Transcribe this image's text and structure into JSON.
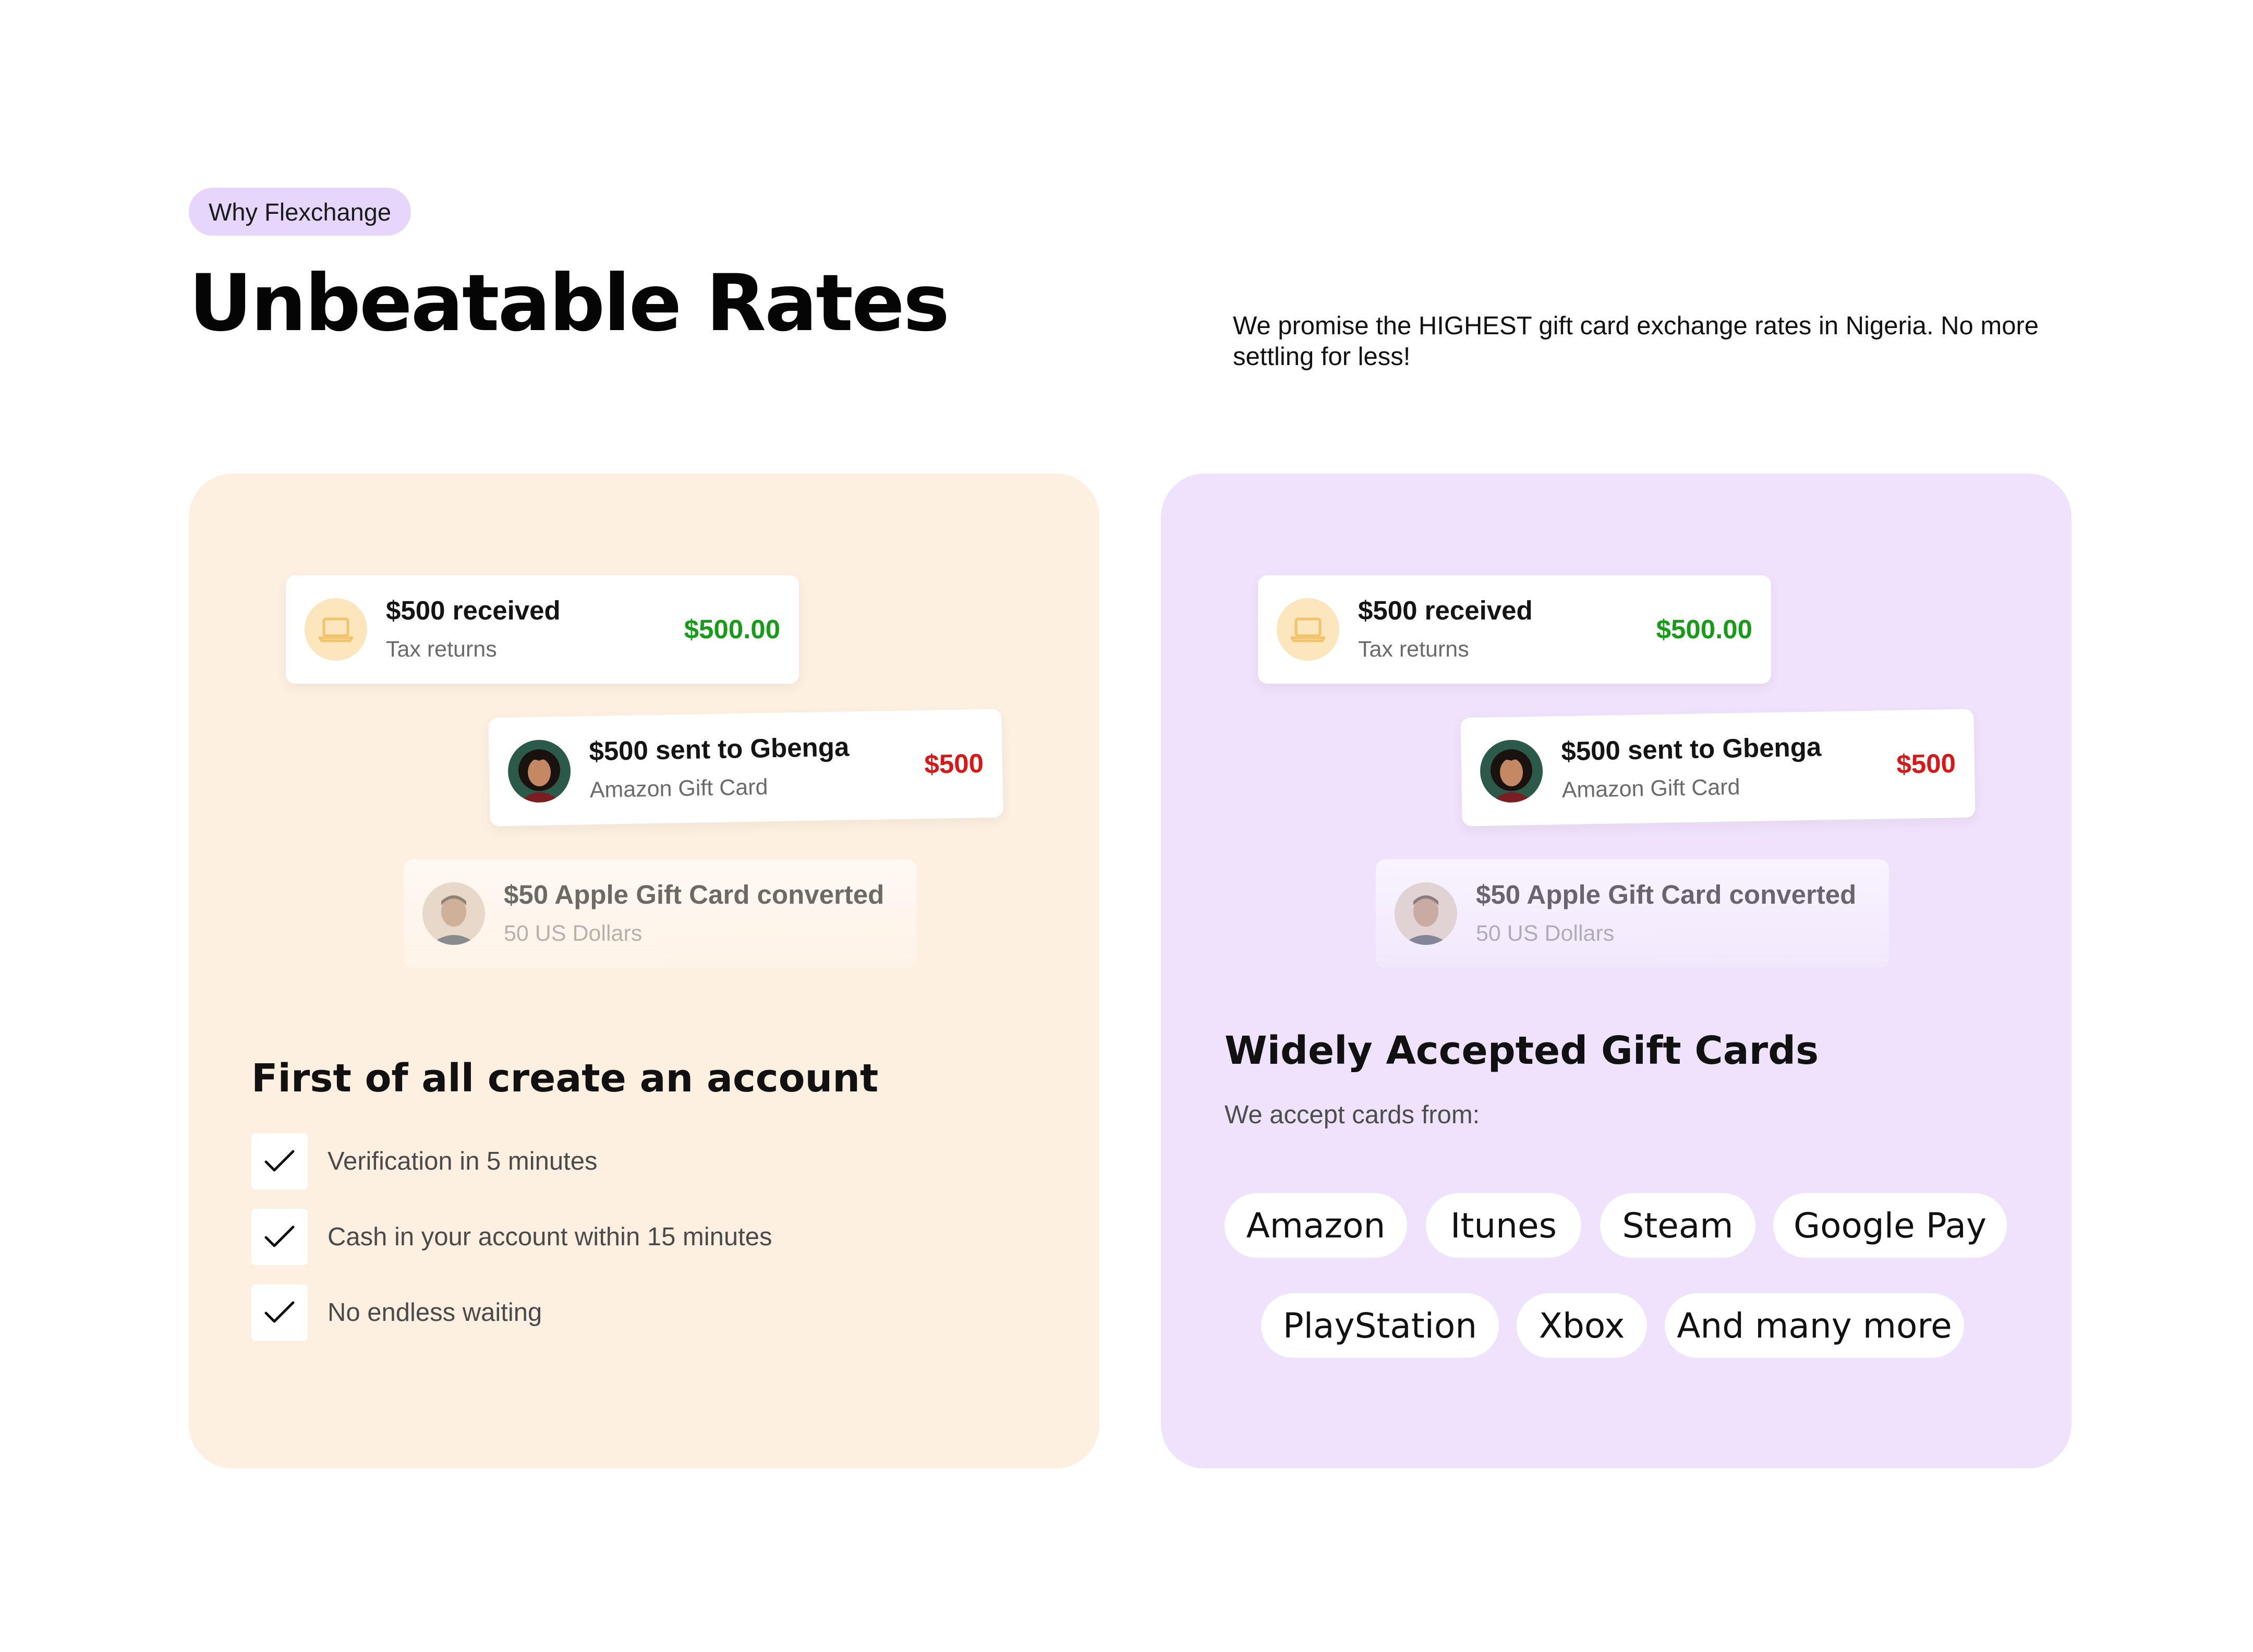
{
  "header": {
    "badge": "Why Flexchange",
    "title": "Unbeatable Rates",
    "tagline": "We promise the HIGHEST gift card exchange rates in Nigeria. No more settling for less!"
  },
  "transactions": [
    {
      "title": "$500 received",
      "subtitle": "Tax returns",
      "amount": "$500.00",
      "icon": "laptop-icon"
    },
    {
      "title": "$500 sent to Gbenga",
      "subtitle": "Amazon Gift Card",
      "amount": "$500",
      "icon": "avatar-woman"
    },
    {
      "title": "$50 Apple Gift Card converted",
      "subtitle": "50 US Dollars",
      "icon": "avatar-man"
    }
  ],
  "left_panel": {
    "heading": "First of all create an account",
    "checklist": [
      "Verification in 5 minutes",
      "Cash in your account within 15 minutes",
      "No endless waiting"
    ]
  },
  "right_panel": {
    "heading": "Widely Accepted Gift Cards",
    "subheading": "We accept cards from:",
    "chips": [
      "Amazon",
      "Itunes",
      "Steam",
      "Google Pay",
      "PlayStation",
      "Xbox",
      "And many more"
    ]
  },
  "colors": {
    "badge_bg": "#e7d6fb",
    "left_panel_bg": "#fdf0e1",
    "right_panel_bg": "#efe2fc",
    "positive_amount": "#169c16",
    "negative_amount": "#d81717"
  }
}
